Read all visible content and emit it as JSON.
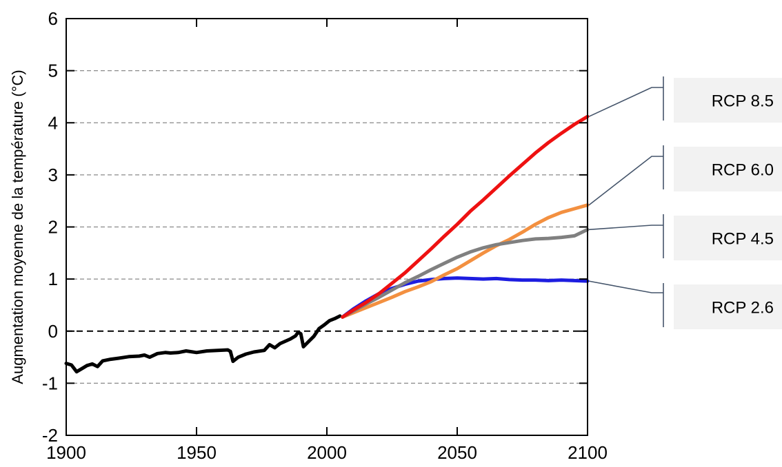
{
  "chart_data": {
    "type": "line",
    "title": "",
    "xlabel": "",
    "ylabel": "Augmentation moyenne de la température (°C)",
    "xlim": [
      1900,
      2100
    ],
    "ylim": [
      -2,
      6
    ],
    "xticks": [
      1900,
      1950,
      2000,
      2050,
      2100
    ],
    "yticks": [
      -2,
      -1,
      0,
      1,
      2,
      3,
      4,
      5,
      6
    ],
    "grid": "horizontal dashed",
    "series": [
      {
        "color": "#000000",
        "points": [
          [
            1900,
            -0.62
          ],
          [
            1902,
            -0.65
          ],
          [
            1904,
            -0.78
          ],
          [
            1906,
            -0.72
          ],
          [
            1908,
            -0.66
          ],
          [
            1910,
            -0.63
          ],
          [
            1912,
            -0.68
          ],
          [
            1914,
            -0.57
          ],
          [
            1917,
            -0.54
          ],
          [
            1920,
            -0.52
          ],
          [
            1924,
            -0.49
          ],
          [
            1928,
            -0.48
          ],
          [
            1930,
            -0.46
          ],
          [
            1932,
            -0.5
          ],
          [
            1935,
            -0.43
          ],
          [
            1938,
            -0.41
          ],
          [
            1940,
            -0.42
          ],
          [
            1943,
            -0.41
          ],
          [
            1946,
            -0.38
          ],
          [
            1950,
            -0.41
          ],
          [
            1954,
            -0.38
          ],
          [
            1958,
            -0.37
          ],
          [
            1962,
            -0.36
          ],
          [
            1963,
            -0.39
          ],
          [
            1964,
            -0.58
          ],
          [
            1966,
            -0.5
          ],
          [
            1969,
            -0.44
          ],
          [
            1972,
            -0.4
          ],
          [
            1976,
            -0.37
          ],
          [
            1978,
            -0.26
          ],
          [
            1980,
            -0.32
          ],
          [
            1982,
            -0.24
          ],
          [
            1986,
            -0.15
          ],
          [
            1988,
            -0.09
          ],
          [
            1989,
            -0.02
          ],
          [
            1990,
            -0.05
          ],
          [
            1991,
            -0.3
          ],
          [
            1993,
            -0.2
          ],
          [
            1995,
            -0.1
          ],
          [
            1997,
            0.05
          ],
          [
            1999,
            0.12
          ],
          [
            2001,
            0.2
          ],
          [
            2003,
            0.24
          ],
          [
            2005,
            0.29
          ]
        ]
      },
      {
        "name": "RCP 8.5",
        "color": "#ee1111",
        "points": [
          [
            2006,
            0.27
          ],
          [
            2010,
            0.4
          ],
          [
            2015,
            0.55
          ],
          [
            2020,
            0.72
          ],
          [
            2025,
            0.92
          ],
          [
            2030,
            1.12
          ],
          [
            2035,
            1.35
          ],
          [
            2040,
            1.58
          ],
          [
            2045,
            1.82
          ],
          [
            2050,
            2.05
          ],
          [
            2055,
            2.3
          ],
          [
            2060,
            2.52
          ],
          [
            2065,
            2.75
          ],
          [
            2070,
            2.98
          ],
          [
            2075,
            3.2
          ],
          [
            2080,
            3.42
          ],
          [
            2085,
            3.62
          ],
          [
            2090,
            3.8
          ],
          [
            2095,
            3.97
          ],
          [
            2100,
            4.12
          ]
        ]
      },
      {
        "name": "RCP 6.0",
        "color": "#f39040",
        "points": [
          [
            2006,
            0.27
          ],
          [
            2010,
            0.35
          ],
          [
            2015,
            0.45
          ],
          [
            2020,
            0.55
          ],
          [
            2025,
            0.65
          ],
          [
            2030,
            0.76
          ],
          [
            2035,
            0.85
          ],
          [
            2040,
            0.95
          ],
          [
            2045,
            1.08
          ],
          [
            2050,
            1.2
          ],
          [
            2055,
            1.35
          ],
          [
            2060,
            1.5
          ],
          [
            2065,
            1.64
          ],
          [
            2070,
            1.76
          ],
          [
            2075,
            1.9
          ],
          [
            2080,
            2.05
          ],
          [
            2085,
            2.18
          ],
          [
            2090,
            2.28
          ],
          [
            2095,
            2.35
          ],
          [
            2100,
            2.42
          ]
        ]
      },
      {
        "name": "RCP 4.5",
        "color": "#808080",
        "points": [
          [
            2006,
            0.27
          ],
          [
            2010,
            0.38
          ],
          [
            2015,
            0.52
          ],
          [
            2020,
            0.65
          ],
          [
            2025,
            0.79
          ],
          [
            2030,
            0.93
          ],
          [
            2035,
            1.05
          ],
          [
            2040,
            1.18
          ],
          [
            2045,
            1.3
          ],
          [
            2050,
            1.42
          ],
          [
            2055,
            1.52
          ],
          [
            2060,
            1.6
          ],
          [
            2065,
            1.66
          ],
          [
            2070,
            1.7
          ],
          [
            2075,
            1.74
          ],
          [
            2080,
            1.77
          ],
          [
            2085,
            1.78
          ],
          [
            2090,
            1.8
          ],
          [
            2095,
            1.83
          ],
          [
            2100,
            1.95
          ]
        ]
      },
      {
        "name": "RCP 2.6",
        "color": "#1d1de0",
        "points": [
          [
            2006,
            0.27
          ],
          [
            2010,
            0.42
          ],
          [
            2015,
            0.58
          ],
          [
            2020,
            0.72
          ],
          [
            2025,
            0.82
          ],
          [
            2030,
            0.9
          ],
          [
            2035,
            0.96
          ],
          [
            2040,
            0.99
          ],
          [
            2045,
            1.01
          ],
          [
            2050,
            1.02
          ],
          [
            2055,
            1.01
          ],
          [
            2060,
            1.0
          ],
          [
            2065,
            1.01
          ],
          [
            2070,
            0.99
          ],
          [
            2075,
            0.98
          ],
          [
            2080,
            0.98
          ],
          [
            2085,
            0.97
          ],
          [
            2090,
            0.98
          ],
          [
            2095,
            0.97
          ],
          [
            2100,
            0.96
          ]
        ]
      }
    ],
    "annotations": [
      {
        "text": "RCP 8.5",
        "color": "#ee1111"
      },
      {
        "text": "RCP 6.0",
        "color": "#f39040"
      },
      {
        "text": "RCP 4.5",
        "color": "#808080"
      },
      {
        "text": "RCP 2.6",
        "color": "#1d1de0"
      }
    ]
  }
}
